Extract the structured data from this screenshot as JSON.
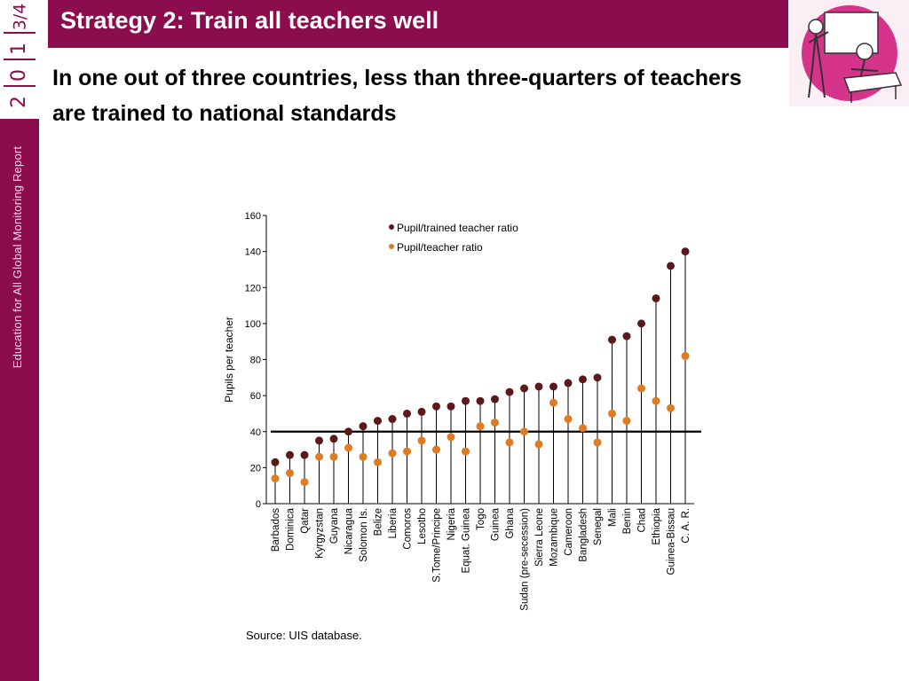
{
  "header": {
    "title": "Strategy 2: Train all teachers well"
  },
  "sidebar": {
    "year_digits": [
      "2",
      "0",
      "1",
      "3/4"
    ],
    "report_title": "Education for All Global Monitoring Report"
  },
  "subtitle": "In one out of three countries, less than three-quarters of teachers are trained to national standards",
  "source": "Source: UIS database.",
  "colors": {
    "brand": "#8b0d4e",
    "trained_marker": "#5a1a1a",
    "teacher_marker": "#e07b20"
  },
  "chart_data": {
    "type": "scatter",
    "style": "dumbbell",
    "title": "",
    "xlabel": "",
    "ylabel": "Pupils per teacher",
    "ylim": [
      0,
      160
    ],
    "yticks": [
      0,
      20,
      40,
      60,
      80,
      100,
      120,
      140,
      160
    ],
    "reference_line": 40,
    "legend_position": "top-center",
    "categories": [
      "Barbados",
      "Dominica",
      "Qatar",
      "Kyrgyzstan",
      "Guyana",
      "Nicaragua",
      "Solomon Is.",
      "Belize",
      "Liberia",
      "Comoros",
      "Lesotho",
      "S.Tome/Principe",
      "Nigeria",
      "Equat. Guinea",
      "Togo",
      "Guinea",
      "Ghana",
      "Sudan (pre-secession)",
      "Sierra Leone",
      "Mozambique",
      "Cameroon",
      "Bangladesh",
      "Senegal",
      "Mali",
      "Benin",
      "Chad",
      "Ethiopia",
      "Guinea-Bissau",
      "C. A. R."
    ],
    "series": [
      {
        "name": "Pupil/trained teacher ratio",
        "color": "#5a1a1a",
        "values": [
          23,
          27,
          27,
          35,
          36,
          40,
          43,
          46,
          47,
          50,
          51,
          54,
          54,
          57,
          57,
          58,
          62,
          64,
          65,
          65,
          67,
          69,
          70,
          91,
          93,
          100,
          114,
          132,
          140
        ]
      },
      {
        "name": "Pupil/teacher ratio",
        "color": "#e07b20",
        "values": [
          14,
          17,
          12,
          26,
          26,
          31,
          26,
          23,
          28,
          29,
          35,
          30,
          37,
          29,
          43,
          45,
          34,
          40,
          33,
          56,
          47,
          42,
          34,
          50,
          46,
          64,
          57,
          53,
          82
        ]
      }
    ]
  }
}
